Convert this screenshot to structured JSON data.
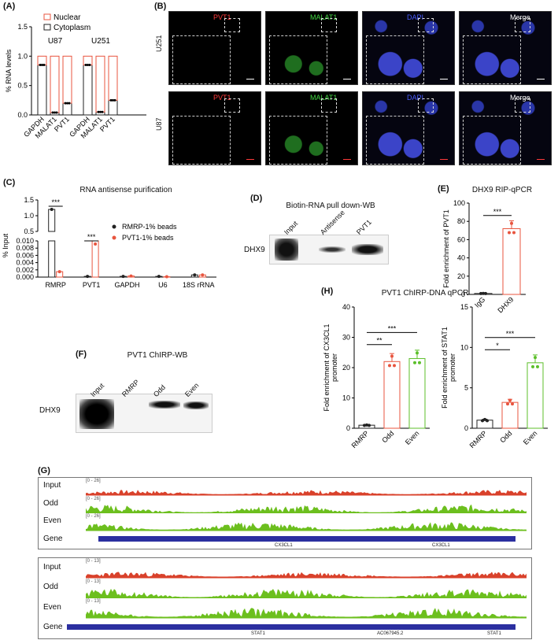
{
  "panels": {
    "A": {
      "letter": "(A)"
    },
    "B": {
      "letter": "(B)"
    },
    "C": {
      "letter": "(C)",
      "title": "RNA antisense purification"
    },
    "D": {
      "letter": "(D)",
      "title": "Biotin-RNA pull down-WB"
    },
    "E": {
      "letter": "(E)",
      "title": "DHX9 RIP-qPCR"
    },
    "F": {
      "letter": "(F)",
      "title": "PVT1 ChIRP-WB"
    },
    "G": {
      "letter": "(G)"
    },
    "H": {
      "letter": "(H)",
      "title": "PVT1 ChIRP-DNA qPCR"
    }
  },
  "chart_data": [
    {
      "id": "A",
      "type": "bar",
      "stacked": true,
      "ylabel": "% RNA levels",
      "ylim": [
        0,
        1.5
      ],
      "yticks": [
        "0.0",
        "0.5",
        "1.0",
        "1.5"
      ],
      "groups": [
        {
          "name": "U87",
          "categories": [
            "GAPDH",
            "MALAT1",
            "PVT1"
          ],
          "cytoplasm": [
            0.85,
            0.04,
            0.2
          ],
          "nuclear": [
            0.15,
            0.96,
            0.8
          ]
        },
        {
          "name": "U251",
          "categories": [
            "GAPDH",
            "MALAT1",
            "PVT1"
          ],
          "cytoplasm": [
            0.85,
            0.05,
            0.25
          ],
          "nuclear": [
            0.15,
            0.95,
            0.75
          ]
        }
      ],
      "legend": [
        "Nuclear",
        "Cytoplasm"
      ],
      "colors": {
        "nuclear": "#e8553f",
        "cytoplasm": "#222222"
      }
    },
    {
      "id": "C",
      "type": "bar",
      "title": "RNA antisense purification",
      "ylabel": "% Input",
      "yticks_upper": [
        "0.5",
        "1.0",
        "1.5"
      ],
      "yticks_lower": [
        "0.000",
        "0.002",
        "0.004",
        "0.006",
        "0.008",
        "0.010"
      ],
      "categories": [
        "RMRP",
        "PVT1",
        "GAPDH",
        "U6",
        "18S rRNA"
      ],
      "series": [
        {
          "name": "RMRP-1% beads",
          "values": [
            1.2,
            0.0002,
            0.0002,
            0.0002,
            0.0006
          ],
          "color": "#222222"
        },
        {
          "name": "PVT1-1% beads",
          "values": [
            0.0015,
            0.3,
            0.0003,
            0.0001,
            0.0006
          ],
          "color": "#e8553f"
        }
      ],
      "significance": [
        {
          "category": "RMRP",
          "label": "***"
        },
        {
          "category": "PVT1",
          "label": "***"
        }
      ]
    },
    {
      "id": "E",
      "type": "bar",
      "title": "DHX9 RIP-qPCR",
      "ylabel": "Fold enrichment of PVT1",
      "ylim": [
        0,
        100
      ],
      "yticks": [
        "0",
        "20",
        "40",
        "60",
        "80",
        "100"
      ],
      "categories": [
        "IgG",
        "DHX9"
      ],
      "values": [
        1,
        72
      ],
      "significance": [
        {
          "label": "***"
        }
      ],
      "color": "#e8553f"
    },
    {
      "id": "H1",
      "type": "bar",
      "ylabel": "Fold enrichment of CX3CL1 promoter",
      "ylim": [
        0,
        40
      ],
      "yticks": [
        "0",
        "10",
        "20",
        "30",
        "40"
      ],
      "categories": [
        "RMRP",
        "Odd",
        "Even"
      ],
      "values": [
        1,
        22,
        23
      ],
      "colors": [
        "#222222",
        "#e8553f",
        "#5cbf2a"
      ],
      "significance": [
        {
          "label": "**"
        },
        {
          "label": "***"
        }
      ]
    },
    {
      "id": "H2",
      "type": "bar",
      "ylabel": "Fold enrichment of STAT1 promoter",
      "ylim": [
        0,
        15
      ],
      "yticks": [
        "0",
        "5",
        "10",
        "15"
      ],
      "categories": [
        "RMRP",
        "Odd",
        "Even"
      ],
      "values": [
        1,
        3.2,
        8.1
      ],
      "colors": [
        "#222222",
        "#e8553f",
        "#5cbf2a"
      ],
      "significance": [
        {
          "label": "*"
        },
        {
          "label": "***"
        }
      ]
    }
  ],
  "microscopy": {
    "rows": [
      {
        "cell_line": "U251",
        "channels": [
          "PVT1",
          "MALAT1",
          "DAPI",
          "Merge"
        ]
      },
      {
        "cell_line": "U87",
        "channels": [
          "PVT1",
          "MALAT1",
          "DAPI",
          "Merge"
        ]
      }
    ],
    "channel_colors": {
      "PVT1": "#ff3a3a",
      "MALAT1": "#42d742",
      "DAPI": "#4a5cff",
      "Merge": "#ffffff"
    }
  },
  "blots": {
    "D": {
      "lanes": [
        "Input",
        "Antisense",
        "PVT1"
      ],
      "protein": "DHX9"
    },
    "F": {
      "lanes": [
        "Input",
        "RMRP",
        "Odd",
        "Even"
      ],
      "protein": "DHX9"
    }
  },
  "tracks": {
    "block1": {
      "range": "[0 - 26]",
      "rows": [
        "Input",
        "Odd",
        "Even",
        "Gene"
      ],
      "genes": [
        "CX3CL1",
        "CX3CL1"
      ]
    },
    "block2": {
      "range": "[0 - 13]",
      "rows": [
        "Input",
        "Odd",
        "Even",
        "Gene"
      ],
      "genes": [
        "STAT1",
        "AC067945.2",
        "STAT1"
      ]
    }
  }
}
